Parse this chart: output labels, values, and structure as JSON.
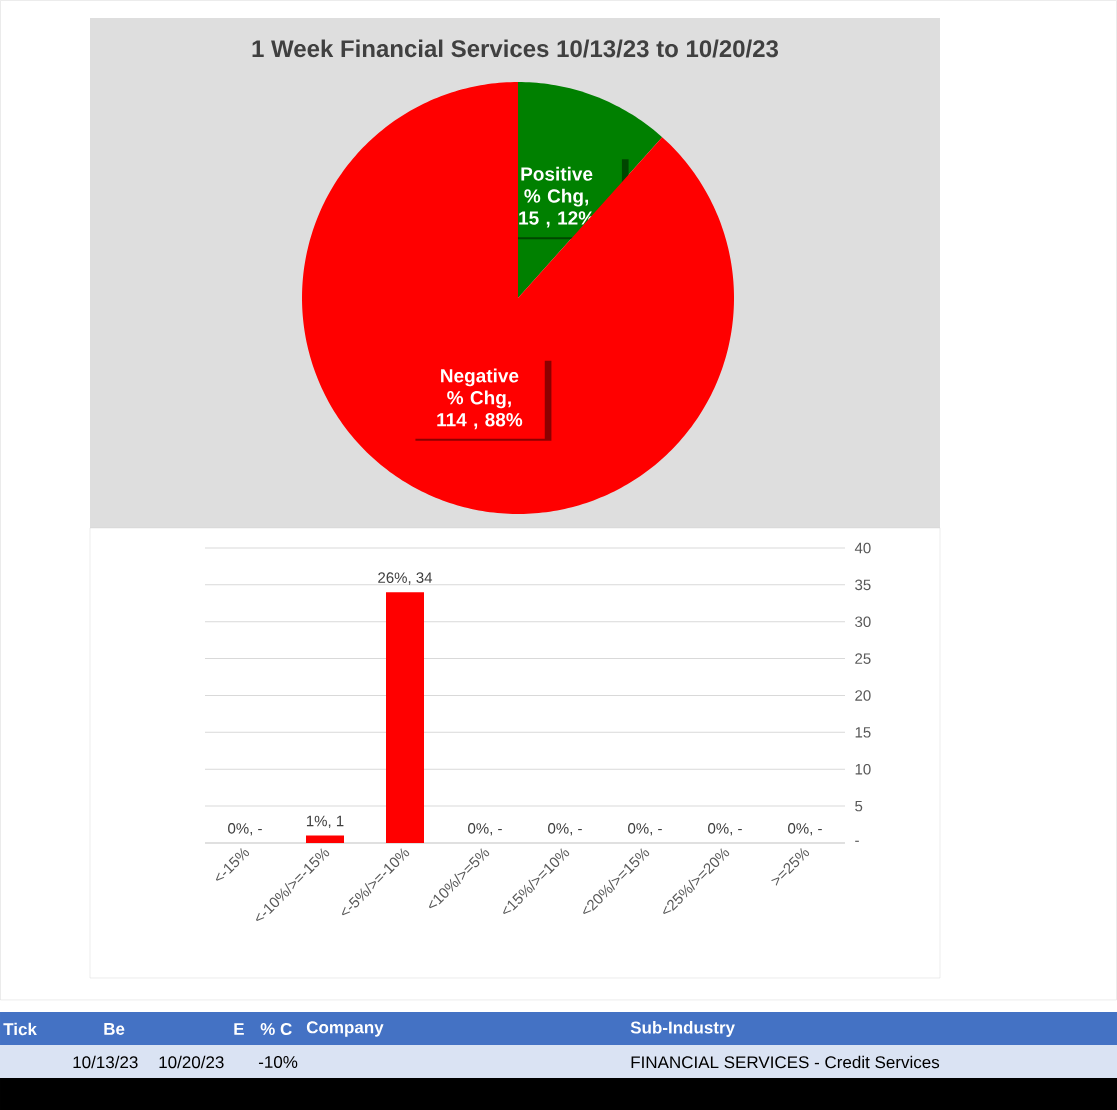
{
  "chart_data": [
    {
      "type": "pie",
      "title": "1 Week Financial Services 10/13/23 to 10/20/23",
      "categories": [
        "Positive % Chg",
        "Negative % Chg"
      ],
      "values": [
        15,
        114
      ],
      "colors": [
        "#008000",
        "#ff0000"
      ],
      "value_labels": [
        ",  15 , 12%",
        ",  114 , 88%"
      ]
    },
    {
      "type": "bar",
      "categories": [
        "<-15%",
        "<-10%/>=-15%",
        "<-5%/>=-10%",
        "<10%/>=5%",
        "<15%/>=10%",
        "<20%/>=15%",
        "<25%/>=20%",
        ">=25%"
      ],
      "values": [
        0,
        1,
        34,
        0,
        0,
        0,
        0,
        0
      ],
      "color": "#ff0000",
      "value_labels": [
        "0%,  -",
        "1%,  1",
        "26%,  34",
        "0%,  -",
        "0%,  -",
        "0%,  -",
        "0%,  -",
        "0%,  -"
      ],
      "ylim": [
        0,
        40
      ],
      "yticks": [
        {
          "value": 0,
          "label": "-"
        },
        5,
        10,
        15,
        20,
        25,
        30,
        35,
        40
      ],
      "grid": "y"
    },
    {
      "type": "other",
      "categories": [
        "Tick",
        "Be",
        "E",
        "% C",
        "Company",
        "Sub-Industry"
      ],
      "cell_labels": [
        [
          null,
          "10/13/23",
          "10/20/23",
          "-10%",
          null,
          "FINANCIAL SERVICES - Credit Services"
        ]
      ]
    }
  ]
}
